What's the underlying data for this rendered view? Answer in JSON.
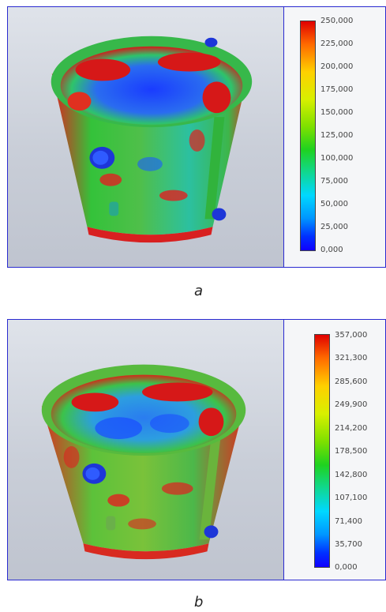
{
  "figure": {
    "panels": [
      {
        "caption": "a",
        "legend_ticks": [
          "250,000",
          "225,000",
          "200,000",
          "175,000",
          "150,000",
          "125,000",
          "100,000",
          "75,000",
          "50,000",
          "25,000",
          "0,000"
        ]
      },
      {
        "caption": "b",
        "legend_ticks": [
          "357,000",
          "321,300",
          "285,600",
          "249,900",
          "214,200",
          "178,500",
          "142,800",
          "107,100",
          "71,400",
          "35,700",
          "0,000"
        ]
      }
    ],
    "colors": {
      "border": "#2a2ad0",
      "colormap": [
        "#e00000",
        "#ff6a00",
        "#ffd000",
        "#7ee000",
        "#1fd21f",
        "#00d8ff",
        "#0030ff"
      ]
    }
  }
}
